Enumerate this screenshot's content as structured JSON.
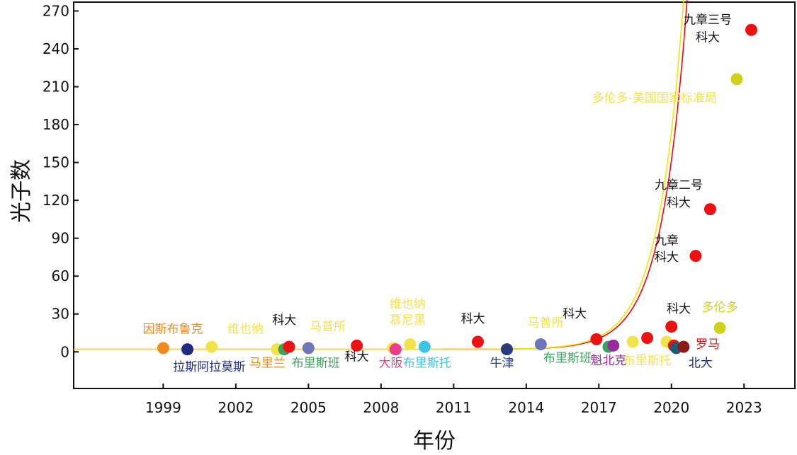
{
  "chart_data": {
    "type": "scatter",
    "xlabel": "年份",
    "ylabel": "光子数",
    "xlim": [
      1995.3,
      2025.1
    ],
    "ylim": [
      -29,
      277
    ],
    "xticks": [
      1999,
      2002,
      2005,
      2008,
      2011,
      2014,
      2017,
      2020,
      2023
    ],
    "yticks": [
      0,
      30,
      60,
      90,
      120,
      150,
      180,
      210,
      240,
      270
    ],
    "grid": false,
    "curves": [
      {
        "name": "",
        "color": "#ff0000",
        "model": "exponential",
        "baseline": 2,
        "amplitude": 8.4e-07,
        "rate": 0.95,
        "x0": 2000
      },
      {
        "name": "",
        "color": "#f2e600",
        "model": "exponential",
        "baseline": 2,
        "amplitude": 8.4e-07,
        "rate": 0.95,
        "x0": 2000
      }
    ],
    "points": [
      {
        "x": 1999.0,
        "y": 3,
        "color": "#f38b1f",
        "label": "",
        "label_pos": "none"
      },
      {
        "x": 2000.0,
        "y": 2,
        "color": "#1f2a80",
        "label": "",
        "label_pos": "none"
      },
      {
        "x": 2001.0,
        "y": 4,
        "color": "#f2e34a",
        "label": "",
        "label_pos": "none"
      },
      {
        "x": 2003.7,
        "y": 2,
        "color": "#f2e34a",
        "label": "",
        "label_pos": "none"
      },
      {
        "x": 2004.0,
        "y": 2,
        "color": "#3aa35a",
        "label": "",
        "label_pos": "none"
      },
      {
        "x": 2004.2,
        "y": 4,
        "color": "#ee1111",
        "label": "",
        "label_pos": "none"
      },
      {
        "x": 2005.0,
        "y": 3,
        "color": "#6e75b9",
        "label": "",
        "label_pos": "none"
      },
      {
        "x": 2007.0,
        "y": 5,
        "color": "#ee1111",
        "label": "",
        "label_pos": "none"
      },
      {
        "x": 2008.5,
        "y": 3,
        "color": "#f2e34a",
        "label": "",
        "label_pos": "none"
      },
      {
        "x": 2008.6,
        "y": 2,
        "color": "#ea3c8a",
        "label": "",
        "label_pos": "none"
      },
      {
        "x": 2009.2,
        "y": 6,
        "color": "#f2e34a",
        "label": "",
        "label_pos": "none"
      },
      {
        "x": 2009.8,
        "y": 4,
        "color": "#3cc4e6",
        "label": "",
        "label_pos": "none"
      },
      {
        "x": 2012.0,
        "y": 8,
        "color": "#ee1111",
        "label": "",
        "label_pos": "none"
      },
      {
        "x": 2013.2,
        "y": 2,
        "color": "#2a3a7a",
        "label": "",
        "label_pos": "none"
      },
      {
        "x": 2014.6,
        "y": 6,
        "color": "#6e75b9",
        "label": "",
        "label_pos": "none"
      },
      {
        "x": 2016.9,
        "y": 10,
        "color": "#ee1111",
        "label": "",
        "label_pos": "none"
      },
      {
        "x": 2017.4,
        "y": 4,
        "color": "#3aa35a",
        "label": "",
        "label_pos": "none"
      },
      {
        "x": 2017.6,
        "y": 5,
        "color": "#9a2aa0",
        "label": "",
        "label_pos": "none"
      },
      {
        "x": 2018.4,
        "y": 8,
        "color": "#f2e34a",
        "label": "",
        "label_pos": "none"
      },
      {
        "x": 2019.0,
        "y": 11,
        "color": "#ee1111",
        "label": "",
        "label_pos": "none"
      },
      {
        "x": 2019.8,
        "y": 8,
        "color": "#f2e34a",
        "label": "",
        "label_pos": "none"
      },
      {
        "x": 2020.0,
        "y": 20,
        "color": "#ee1111",
        "label": "",
        "label_pos": "none"
      },
      {
        "x": 2020.1,
        "y": 5,
        "color": "#ee1111",
        "label": "",
        "label_pos": "none"
      },
      {
        "x": 2020.2,
        "y": 3,
        "color": "#1a5a7a",
        "label": "",
        "label_pos": "none"
      },
      {
        "x": 2020.5,
        "y": 4,
        "color": "#8b1a1a",
        "label": "",
        "label_pos": "none"
      },
      {
        "x": 2021.0,
        "y": 76,
        "color": "#ee1111",
        "label": "",
        "label_pos": "none"
      },
      {
        "x": 2021.6,
        "y": 113,
        "color": "#ee1111",
        "label": "",
        "label_pos": "none"
      },
      {
        "x": 2022.0,
        "y": 19,
        "color": "#cfd21a",
        "label": "",
        "label_pos": "none"
      },
      {
        "x": 2022.7,
        "y": 216,
        "color": "#cfd21a",
        "label": "",
        "label_pos": "none"
      },
      {
        "x": 2023.3,
        "y": 255,
        "color": "#ee1111",
        "label": "",
        "label_pos": "none"
      }
    ],
    "annotations": [
      {
        "text": "因斯布鲁克",
        "color": "#f38b1f",
        "x": 1999.4,
        "y": 15
      },
      {
        "text": "维也纳",
        "color": "#f2e34a",
        "x": 2002.4,
        "y": 15
      },
      {
        "text": "拉斯阿拉莫斯",
        "color": "#1f2a80",
        "x": 2000.9,
        "y": -15
      },
      {
        "text": "科大",
        "color": "#111111",
        "x": 2004.0,
        "y": 22
      },
      {
        "text": "马里兰",
        "color": "#f38b1f",
        "x": 2003.3,
        "y": -12
      },
      {
        "text": "布里斯班",
        "color": "#3aa35a",
        "x": 2005.3,
        "y": -12
      },
      {
        "text": "马普所",
        "color": "#f2e34a",
        "x": 2005.8,
        "y": 17
      },
      {
        "text": "科大",
        "color": "#111111",
        "x": 2007.0,
        "y": -7
      },
      {
        "text": "维也纳",
        "color": "#f2e34a",
        "x": 2009.1,
        "y": 35
      },
      {
        "text": "慕尼黑",
        "color": "#f2e34a",
        "x": 2009.1,
        "y": 22
      },
      {
        "text": "大阪",
        "color": "#ea3c8a",
        "x": 2008.4,
        "y": -12
      },
      {
        "text": "布里斯托",
        "color": "#3cc4e6",
        "x": 2009.9,
        "y": -12
      },
      {
        "text": "科大",
        "color": "#111111",
        "x": 2011.8,
        "y": 23
      },
      {
        "text": "牛津",
        "color": "#2a3a7a",
        "x": 2013.0,
        "y": -12
      },
      {
        "text": "马普所",
        "color": "#f2e34a",
        "x": 2014.8,
        "y": 20
      },
      {
        "text": "科大",
        "color": "#111111",
        "x": 2016.0,
        "y": 27
      },
      {
        "text": "布里斯班",
        "color": "#3aa35a",
        "x": 2015.7,
        "y": -8
      },
      {
        "text": "魁北克",
        "color": "#9a2aa0",
        "x": 2017.4,
        "y": -10
      },
      {
        "text": "布里斯托",
        "color": "#f2e34a",
        "x": 2019.0,
        "y": -10
      },
      {
        "text": "北大",
        "color": "#1f2a80",
        "x": 2021.2,
        "y": -12
      },
      {
        "text": "罗马",
        "color": "#ee1111",
        "x": 2021.5,
        "y": 3
      },
      {
        "text": "科大",
        "color": "#111111",
        "x": 2020.3,
        "y": 31
      },
      {
        "text": "多伦多",
        "color": "#cfd21a",
        "x": 2022.0,
        "y": 32
      },
      {
        "text": "九章",
        "color": "#111111",
        "x": 2019.8,
        "y": 85
      },
      {
        "text": "科大",
        "color": "#111111",
        "x": 2019.8,
        "y": 72
      },
      {
        "text": "九章二号",
        "color": "#111111",
        "x": 2020.3,
        "y": 129
      },
      {
        "text": "科大",
        "color": "#111111",
        "x": 2020.3,
        "y": 115
      },
      {
        "text": "多伦多-美国国家标准局",
        "color": "#f2e34a",
        "x": 2019.3,
        "y": 198
      },
      {
        "text": "九章三号",
        "color": "#111111",
        "x": 2021.5,
        "y": 260
      },
      {
        "text": "科大",
        "color": "#111111",
        "x": 2021.5,
        "y": 246
      }
    ]
  }
}
